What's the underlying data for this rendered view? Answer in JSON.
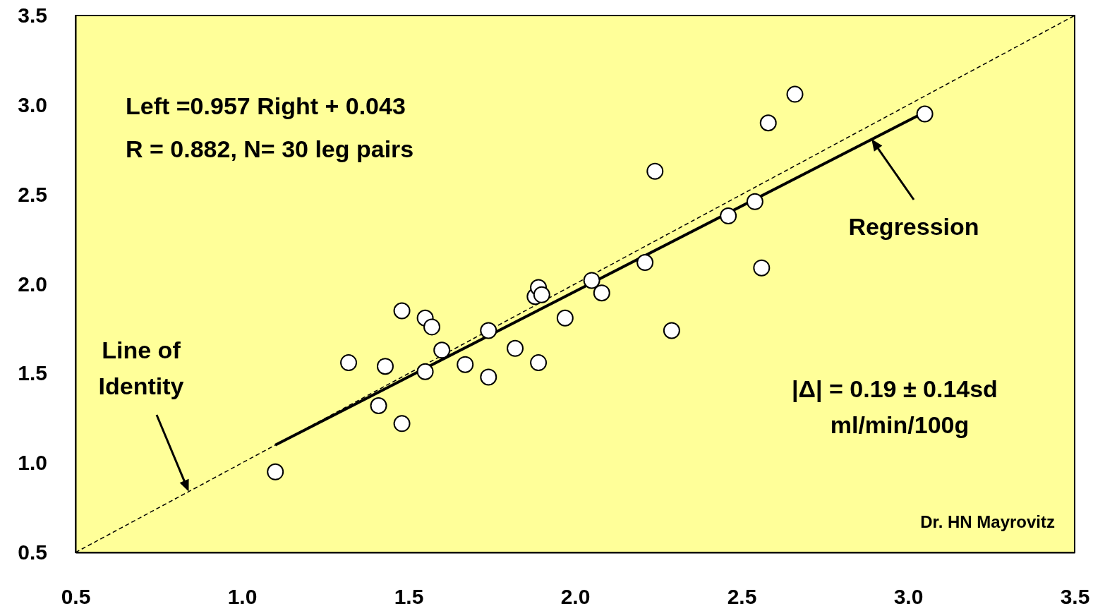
{
  "chart_data": {
    "type": "scatter",
    "xlim": [
      0.5,
      3.5
    ],
    "ylim": [
      0.5,
      3.5
    ],
    "xticks": [
      0.5,
      {
        "value": 1,
        "label": "1.0"
      },
      1.5,
      {
        "value": 2,
        "label": "2.0"
      },
      2.5,
      {
        "value": 3,
        "label": "3.0"
      },
      3.5
    ],
    "yticks": [
      0.5,
      {
        "value": 1,
        "label": "1.0"
      },
      1.5,
      {
        "value": 2,
        "label": "2.0"
      },
      2.5,
      {
        "value": 3,
        "label": "3.0"
      },
      3.5
    ],
    "grid": false,
    "series": [
      {
        "type": "line",
        "color": "#000000",
        "line_style": "dashed",
        "marker": "none",
        "x": [
          0.5,
          3.5
        ],
        "values": [
          0.5,
          3.5
        ]
      },
      {
        "type": "line",
        "color": "#000000",
        "line_style": "solid",
        "marker": "none",
        "x": [
          1.1,
          3.05
        ],
        "values": [
          1.1,
          2.96
        ]
      },
      {
        "type": "scatter",
        "color": "#000000",
        "marker": "circle",
        "x": [
          1.1,
          1.32,
          1.41,
          1.43,
          1.48,
          1.48,
          1.55,
          1.55,
          1.57,
          1.6,
          1.67,
          1.74,
          1.74,
          1.82,
          1.88,
          1.89,
          1.9,
          1.89,
          1.97,
          2.05,
          2.08,
          2.21,
          2.24,
          2.29,
          2.46,
          2.54,
          2.56,
          2.58,
          2.66,
          3.05
        ],
        "values": [
          0.95,
          1.56,
          1.32,
          1.54,
          1.85,
          1.22,
          1.51,
          1.81,
          1.76,
          1.63,
          1.55,
          1.74,
          1.48,
          1.64,
          1.93,
          1.98,
          1.94,
          1.56,
          1.81,
          2.02,
          1.95,
          2.12,
          2.63,
          1.74,
          2.38,
          2.46,
          2.09,
          2.9,
          3.06,
          2.95
        ]
      }
    ],
    "annotations": [
      "Left =0.957 Right + 0.043",
      "R = 0.882, N= 30 leg pairs",
      {
        "text": "Regression",
        "x": 2.89,
        "y": 2.81
      },
      {
        "text": "Line of Identity",
        "x": 0.84,
        "y": 0.84
      },
      "|Δ| = 0.19 ± 0.14sd",
      "ml/min/100g",
      "Dr. HN Mayrovitz"
    ]
  }
}
